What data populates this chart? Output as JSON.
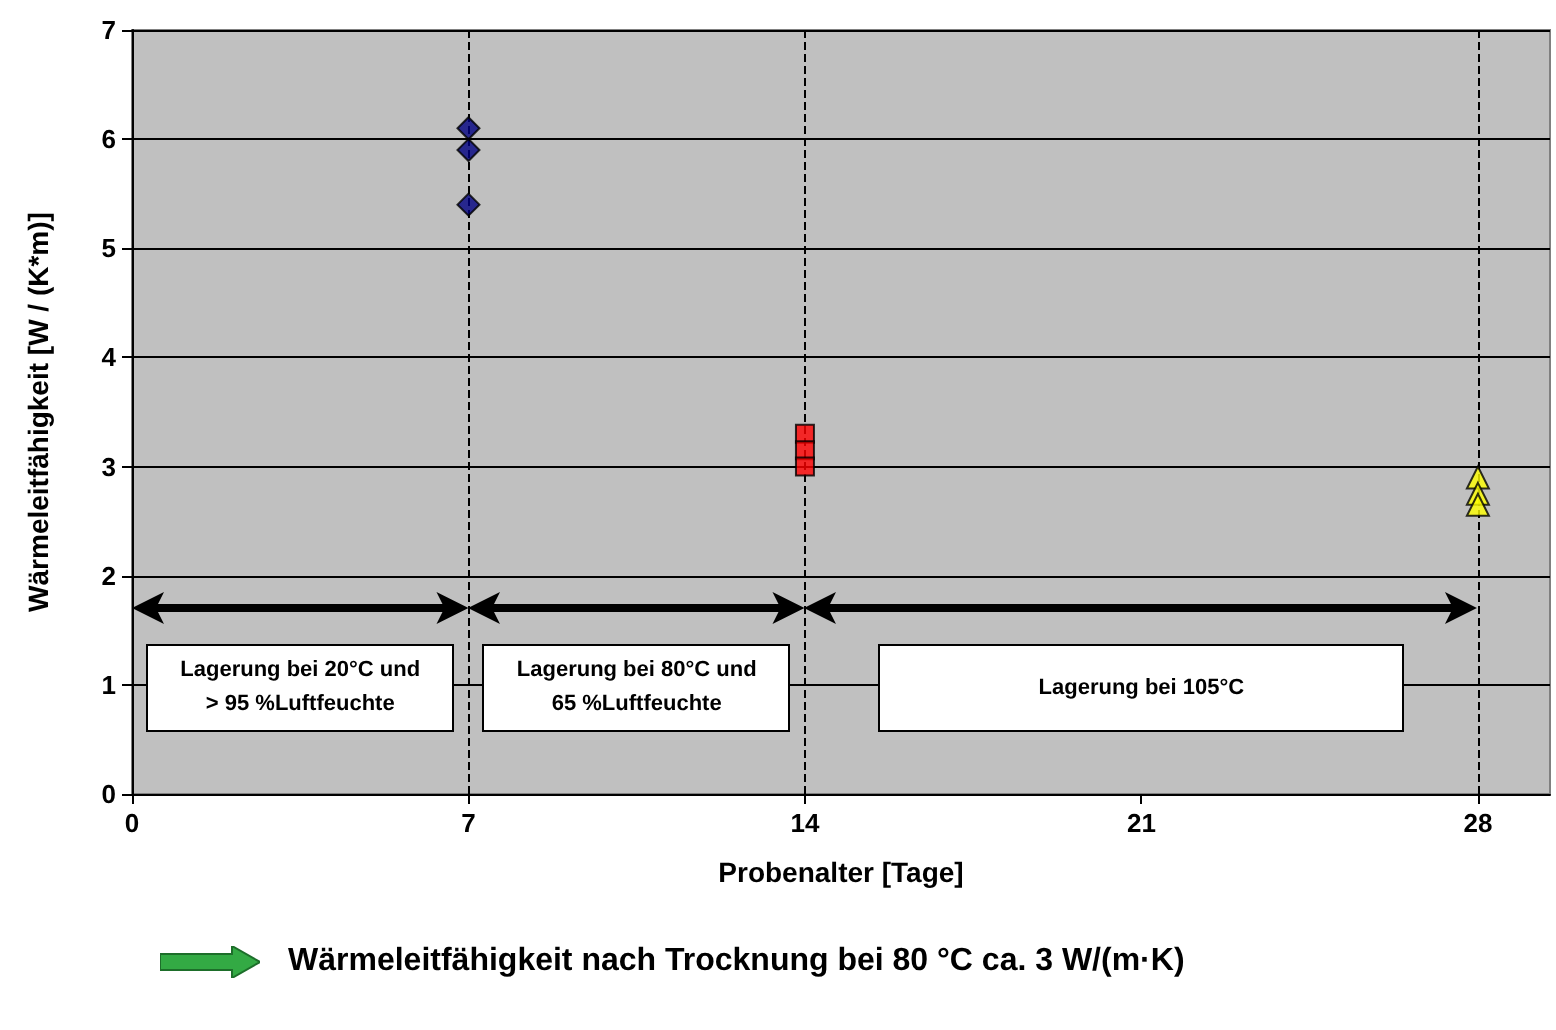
{
  "chart_data": {
    "type": "scatter",
    "xlabel": "Probenalter [Tage]",
    "ylabel": "Wärmeleitfähigkeit [W / (K*m)]",
    "xlim": [
      0,
      29.5
    ],
    "xticks": [
      0,
      7,
      14,
      21,
      28
    ],
    "ylim": [
      0,
      7
    ],
    "yticks": [
      0,
      1,
      2,
      3,
      4,
      5,
      6,
      7
    ],
    "grid": "y",
    "series": [
      {
        "color": "#000080",
        "marker": "diamond",
        "x": [
          7,
          7,
          7
        ],
        "values": [
          6.1,
          5.9,
          5.4
        ]
      },
      {
        "color": "#ff0000",
        "marker": "square",
        "x": [
          14,
          14,
          14
        ],
        "values": [
          3.3,
          3.15,
          3.0
        ]
      },
      {
        "color": "#ffff00",
        "marker": "triangle",
        "x": [
          28,
          28,
          28
        ],
        "values": [
          2.9,
          2.75,
          2.65
        ]
      }
    ],
    "ref_lines": [
      {
        "axis": "x",
        "value": 7,
        "line_style": "dashed"
      },
      {
        "axis": "x",
        "value": 14,
        "line_style": "dashed"
      },
      {
        "axis": "x",
        "value": 28,
        "line_style": "dashed"
      }
    ],
    "annotations": [
      "Lagerung bei 20°C und\n> 95 %Luftfeuchte",
      "Lagerung bei 80°C und\n65 %Luftfeuchte",
      "Lagerung bei 105°C",
      "Wärmeleitfähigkeit nach Trocknung bei 80 °C ca. 3 W/(m·K)"
    ]
  }
}
